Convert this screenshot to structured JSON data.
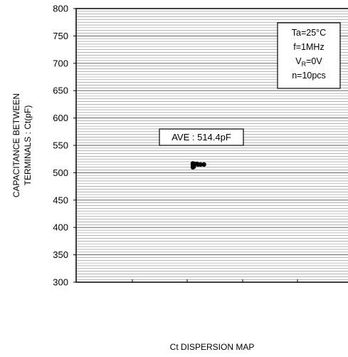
{
  "chart_data": {
    "type": "scatter",
    "title": "",
    "xlabel": "Ct DISPERSION MAP",
    "ylabel_lines": [
      "CAPACITANCE BETWEEN",
      "TERMINALS : Ct(pF)"
    ],
    "ylim": [
      300,
      800
    ],
    "yticks": [
      300,
      350,
      400,
      450,
      500,
      550,
      600,
      650,
      700,
      750,
      800
    ],
    "minor_grid_step": 5,
    "grid": true,
    "conditions": {
      "ta": "Ta=25°C",
      "freq": "f=1MHz",
      "vr_main": "V",
      "vr_sub": "R",
      "vr_rest": "=0V",
      "n": "n=10pcs"
    },
    "average_label": "AVE : 514.4pF",
    "points": [
      {
        "x": 0.0,
        "y": 510
      },
      {
        "x": 0.0,
        "y": 513
      },
      {
        "x": 0.0,
        "y": 516
      },
      {
        "x": 0.0,
        "y": 517
      },
      {
        "x": 0.2,
        "y": 516
      },
      {
        "x": 0.5,
        "y": 516
      },
      {
        "x": 0.6,
        "y": 515
      },
      {
        "x": 0.9,
        "y": 515
      },
      {
        "x": 1.3,
        "y": 515
      },
      {
        "x": 0.1,
        "y": 511
      }
    ]
  }
}
